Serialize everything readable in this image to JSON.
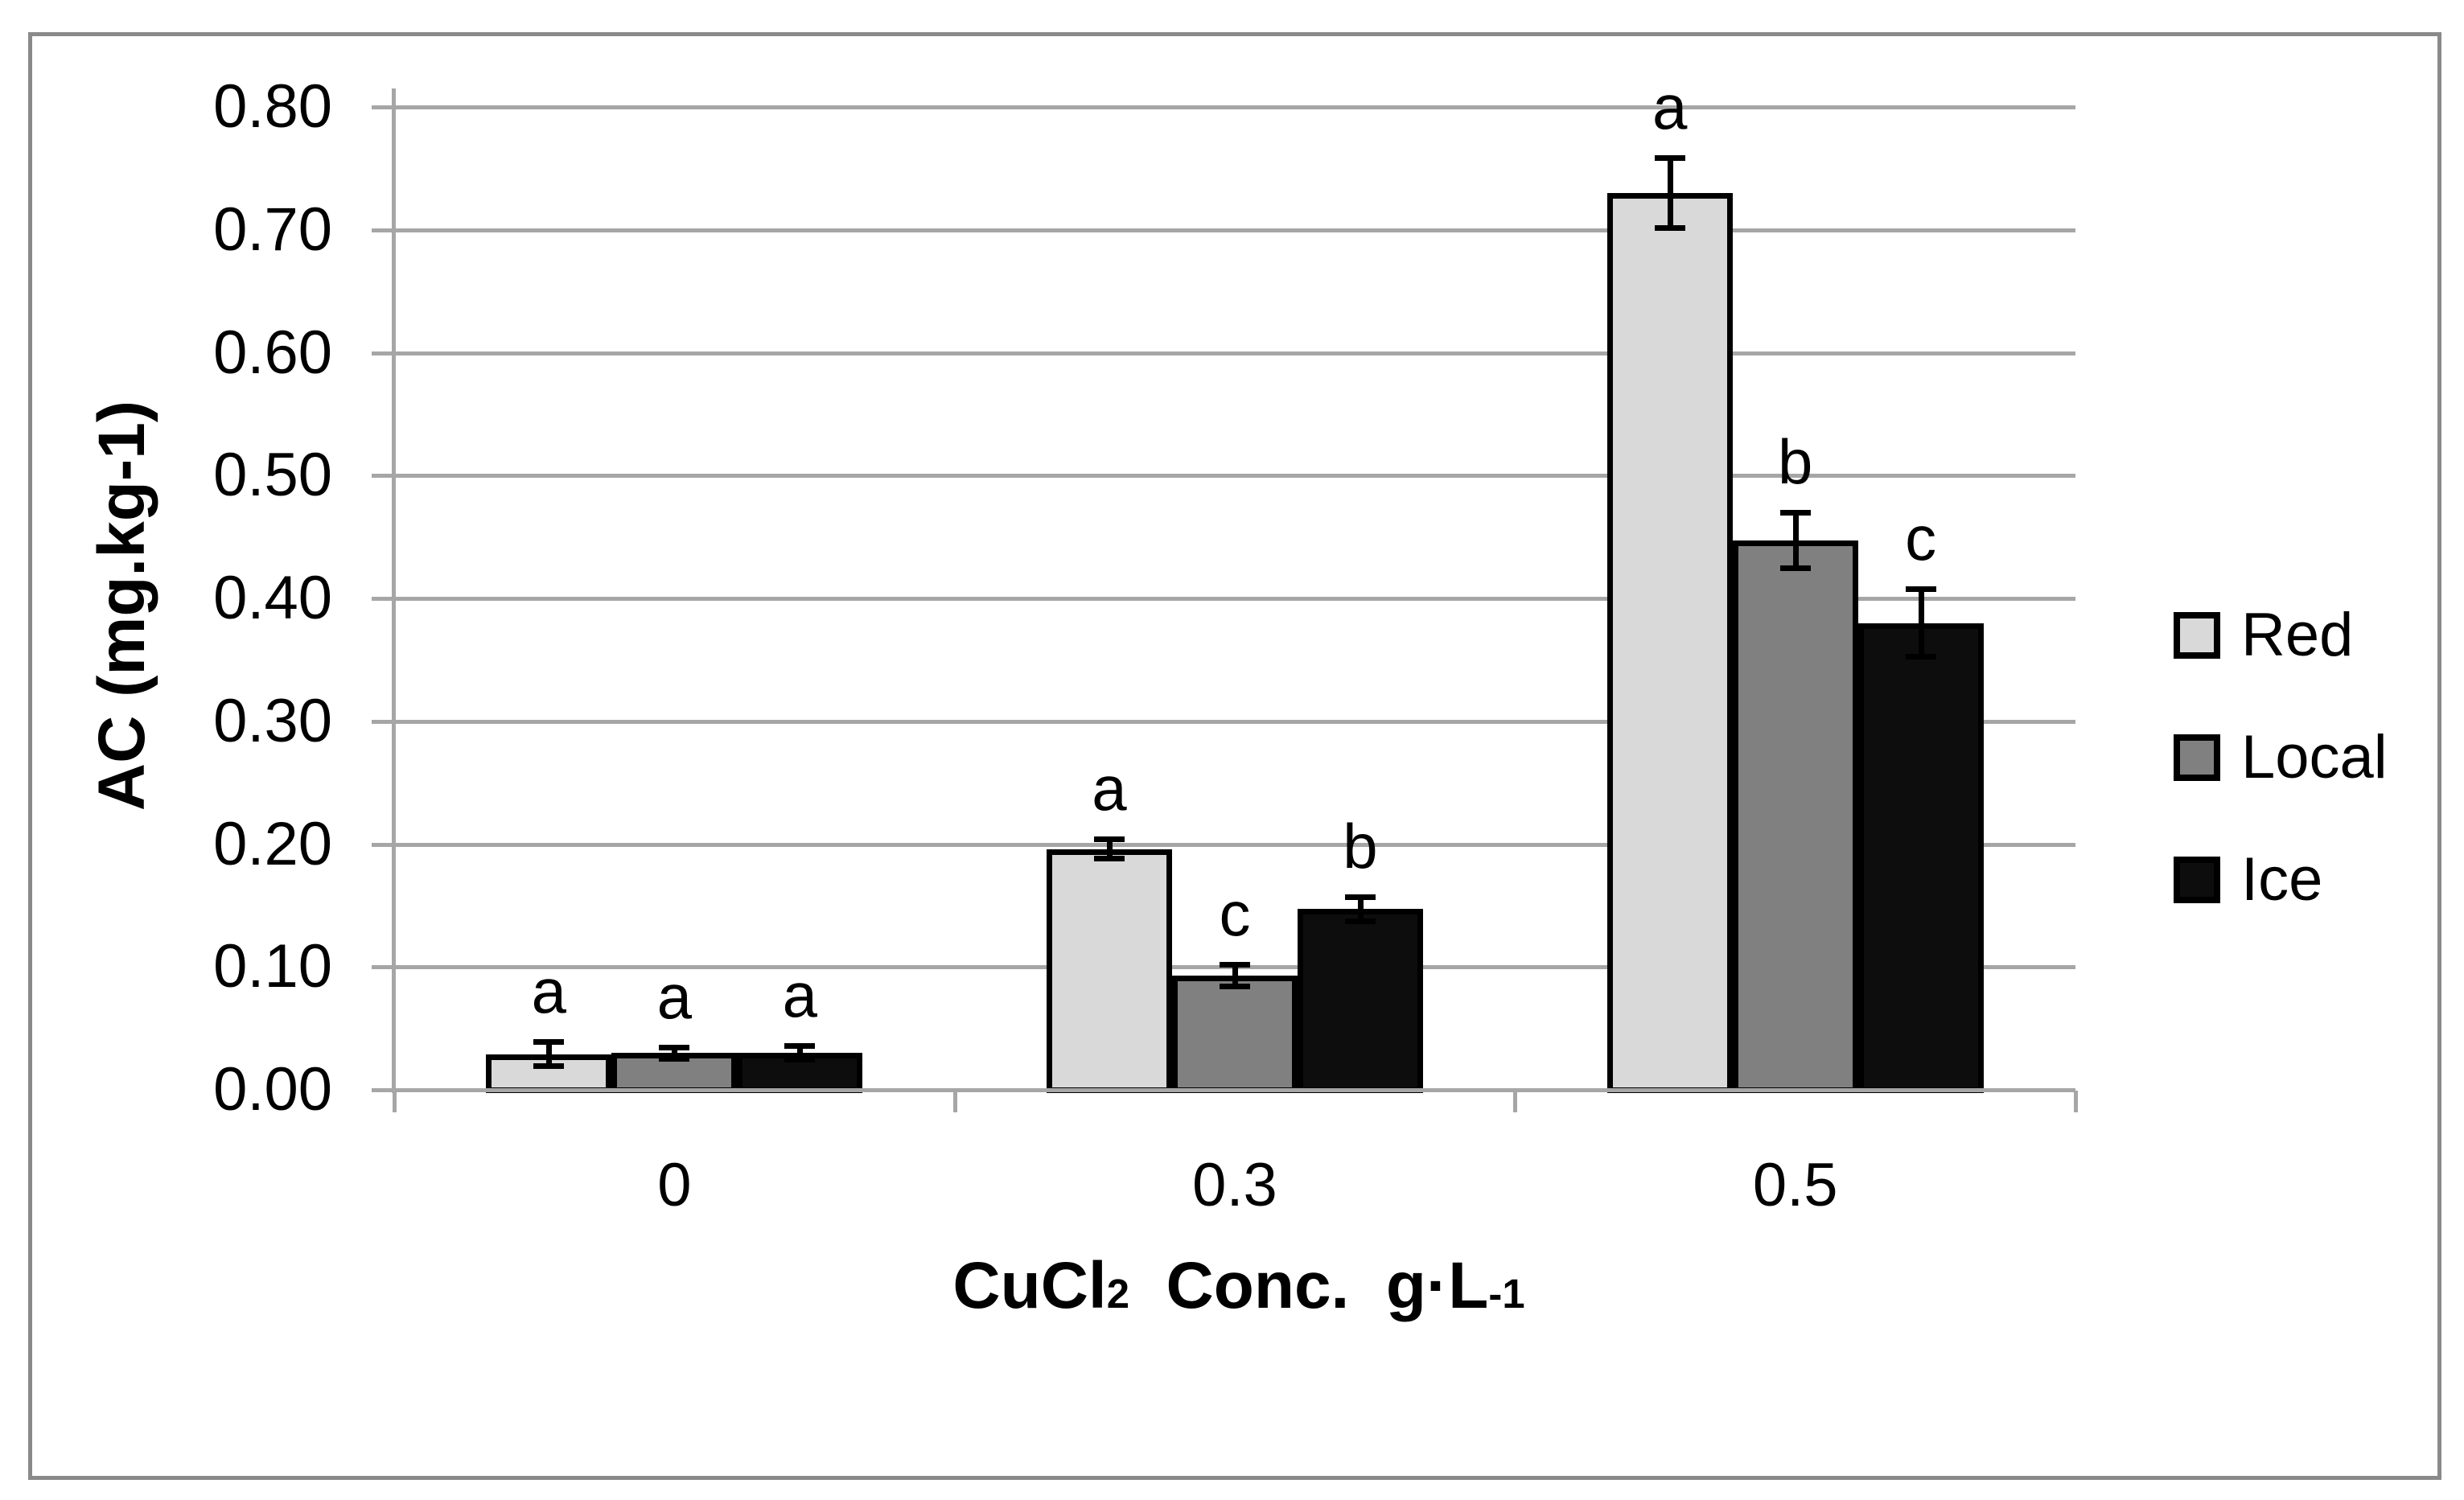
{
  "chart_data": {
    "type": "bar",
    "title": "",
    "categories": [
      "0",
      "0.3",
      "0.5"
    ],
    "series": [
      {
        "name": "Red",
        "color": "#d9d9d9",
        "values": [
          0.029,
          0.196,
          0.73
        ],
        "errors": [
          0.01,
          0.008,
          0.029
        ],
        "letters": [
          "a",
          "a",
          "a"
        ]
      },
      {
        "name": "Local",
        "color": "#808080",
        "values": [
          0.03,
          0.093,
          0.447
        ],
        "errors": [
          0.005,
          0.009,
          0.023
        ],
        "letters": [
          "a",
          "c",
          "b"
        ]
      },
      {
        "name": "Ice",
        "color": "#0d0d0d",
        "values": [
          0.03,
          0.147,
          0.38
        ],
        "errors": [
          0.006,
          0.01,
          0.028
        ],
        "letters": [
          "a",
          "b",
          "c"
        ]
      }
    ],
    "ylabel": "AC (mg.kg-1)",
    "xlabel_text": "CuCl2  Conc.  g·L-1",
    "xlabel_parts": {
      "base": "CuCl",
      "sub": "2",
      "mid": "  Conc.  g·L",
      "sup": "-1"
    },
    "ylim": [
      0,
      0.8
    ],
    "ytick_step": 0.1,
    "ytick_labels": [
      "0.00",
      "0.10",
      "0.20",
      "0.30",
      "0.40",
      "0.50",
      "0.60",
      "0.70",
      "0.80"
    ],
    "grid": true,
    "legend_position": "right",
    "bar_edge_color": "#000000",
    "error_bar_color": "#000000",
    "gridline_color": "#a6a6a6",
    "figure_border_color": "#8a8a8a"
  },
  "legend": {
    "items": [
      {
        "label": "Red",
        "color": "#d9d9d9"
      },
      {
        "label": "Local",
        "color": "#808080"
      },
      {
        "label": "Ice",
        "color": "#0d0d0d"
      }
    ]
  }
}
